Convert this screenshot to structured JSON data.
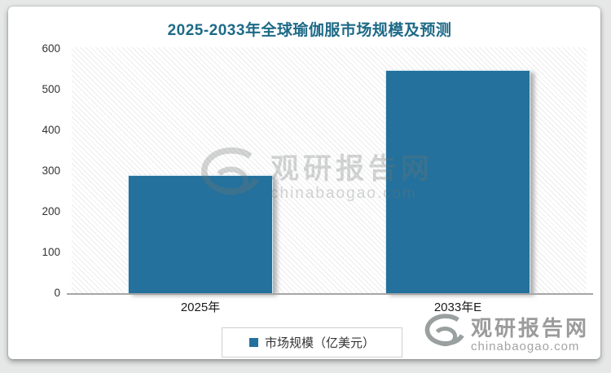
{
  "chart_data": {
    "type": "bar",
    "title": "2025-2033年全球瑜伽服市场规模及预测",
    "categories": [
      "2025年",
      "2033年E"
    ],
    "values": [
      290,
      548
    ],
    "series_name": "市场规模（亿美元）",
    "xlabel": "",
    "ylabel": "",
    "ylim": [
      0,
      600
    ],
    "yticks": [
      0,
      100,
      200,
      300,
      400,
      500,
      600
    ],
    "grid": false,
    "legend_position": "bottom"
  },
  "legend": {
    "label": "市场规模（亿美元）"
  },
  "watermark": {
    "name": "观研报告网",
    "domain": "chinabaogao.com"
  },
  "colors": {
    "title": "#1e6a87",
    "bar": "#23719c",
    "axis_line": "#a6a6a6",
    "watermark_gray": "#9b9b9b"
  }
}
